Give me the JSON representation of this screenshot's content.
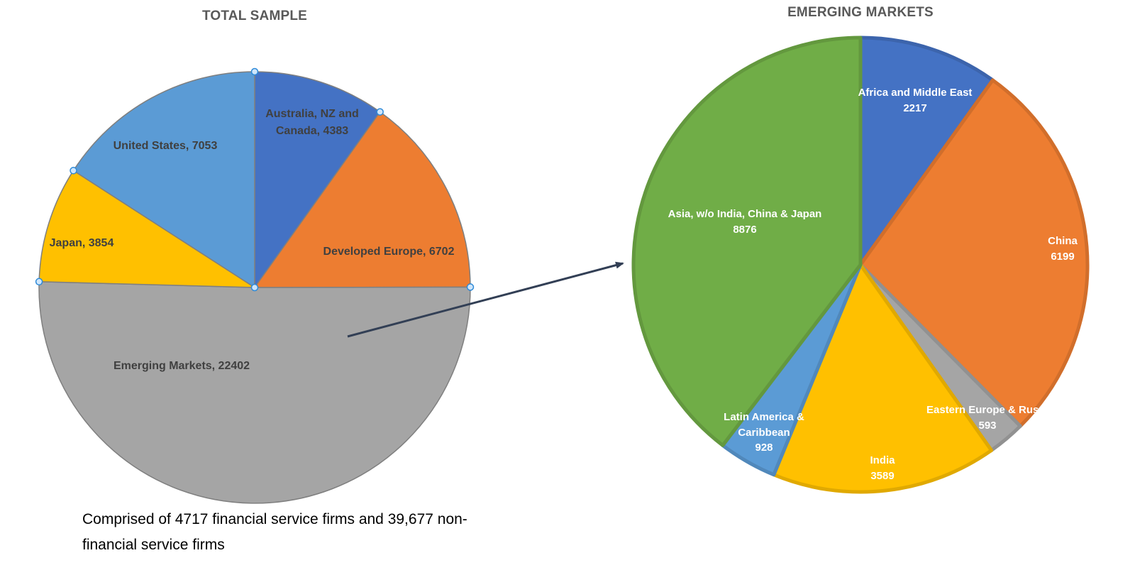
{
  "chart_data": [
    {
      "type": "pie",
      "title": "TOTAL SAMPLE",
      "categories": [
        "Australia, NZ and Canada",
        "Developed Europe",
        "Emerging Markets",
        "Japan",
        "United States"
      ],
      "values": [
        4383,
        6702,
        22402,
        3854,
        7053
      ],
      "colors": [
        "#4472C4",
        "#ED7D31",
        "#A5A5A5",
        "#FFC000",
        "#5B9BD5"
      ],
      "labels": [
        {
          "line1": "Australia, NZ and",
          "line2": "Canada, 4383"
        },
        {
          "line1": "Developed Europe, 6702"
        },
        {
          "line1": "Emerging Markets, 22402"
        },
        {
          "line1": "Japan, 3854"
        },
        {
          "line1": "United States, 7053"
        }
      ],
      "start_angle": "12 o'clock, clockwise",
      "legend": "none (data labels)"
    },
    {
      "type": "pie",
      "title": "EMERGING MARKETS",
      "categories": [
        "Africa and Middle East",
        "China",
        "Eastern Europe & Russia",
        "India",
        "Latin America & Caribbean",
        "Asia, w/o India, China & Japan"
      ],
      "values": [
        2217,
        6199,
        593,
        3589,
        928,
        8876
      ],
      "colors": [
        "#4472C4",
        "#ED7D31",
        "#A5A5A5",
        "#FFC000",
        "#5B9BD5",
        "#70AD47"
      ],
      "labels": [
        {
          "line1": "Africa and Middle East",
          "line2": "2217"
        },
        {
          "line1": "China",
          "line2": "6199"
        },
        {
          "line1": "Eastern Europe & Russia",
          "line2": "593"
        },
        {
          "line1": "India",
          "line2": "3589"
        },
        {
          "line1": "Latin America &",
          "line2": "Caribbean",
          "line3": "928"
        },
        {
          "line1": "Asia, w/o India, China & Japan",
          "line2": "8876"
        }
      ],
      "start_angle": "12 o'clock, clockwise",
      "legend": "none (data labels)"
    }
  ],
  "titles": {
    "left": "TOTAL SAMPLE",
    "right": "EMERGING MARKETS"
  },
  "caption": "Comprised of 4717 financial service firms and 39,677 non-financial service firms",
  "annotation": {
    "arrow": "Emerging Markets slice expanded into right-hand pie"
  }
}
